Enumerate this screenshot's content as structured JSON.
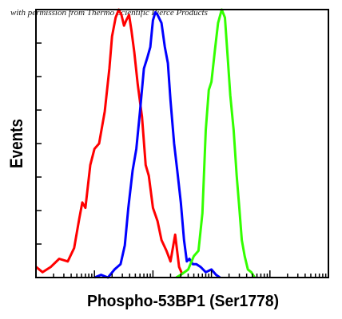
{
  "watermark": "with permission from Thermo Scientific Pierce Products",
  "chart_data": {
    "type": "line",
    "title": "",
    "xlabel": "Phospho-53BP1 (Ser1778)",
    "ylabel": "Events",
    "x_scale": "log",
    "xlim": [
      0.1,
      10000
    ],
    "ylim": [
      0,
      100
    ],
    "grid": false,
    "legend": "none",
    "series": [
      {
        "color": "#ff0000",
        "x": [
          0.1,
          0.13,
          0.18,
          0.25,
          0.35,
          0.45,
          0.55,
          0.62,
          0.7,
          0.85,
          1.0,
          1.2,
          1.5,
          1.8,
          2.0,
          2.3,
          2.6,
          2.9,
          3.2,
          3.5,
          3.9,
          4.3,
          4.8,
          5.5,
          6.5,
          7.5,
          8.5,
          10,
          12,
          14,
          17,
          20,
          24,
          28,
          32
        ],
        "y": [
          4,
          2,
          4,
          7,
          6,
          11,
          22,
          28,
          26,
          42,
          48,
          50,
          62,
          78,
          90,
          97,
          100,
          98,
          94,
          96,
          98,
          92,
          84,
          72,
          60,
          42,
          38,
          26,
          21,
          14,
          10,
          6,
          16,
          4,
          1
        ]
      },
      {
        "color": "#0000ff",
        "x": [
          1.0,
          1.3,
          1.7,
          2.2,
          2.8,
          3.3,
          3.8,
          4.5,
          5.2,
          6.0,
          7.0,
          8.0,
          9.0,
          10,
          11,
          12,
          14,
          16,
          18,
          20,
          23,
          26,
          30,
          34,
          38,
          42,
          48,
          55,
          65,
          80,
          100,
          120,
          140
        ],
        "y": [
          0,
          1,
          0,
          3,
          5,
          12,
          26,
          40,
          48,
          62,
          78,
          82,
          86,
          96,
          99,
          98,
          95,
          86,
          80,
          66,
          50,
          40,
          28,
          14,
          6,
          7,
          5,
          5,
          4,
          2,
          3,
          1,
          0
        ]
      },
      {
        "color": "#33ff00",
        "x": [
          25,
          30,
          40,
          50,
          60,
          70,
          80,
          90,
          100,
          115,
          130,
          150,
          170,
          190,
          210,
          240,
          270,
          300,
          330,
          370,
          420,
          480,
          550
        ],
        "y": [
          0,
          1,
          3,
          8,
          10,
          24,
          55,
          70,
          73,
          85,
          95,
          100,
          97,
          82,
          68,
          55,
          38,
          26,
          14,
          8,
          3,
          2,
          0
        ]
      }
    ]
  }
}
